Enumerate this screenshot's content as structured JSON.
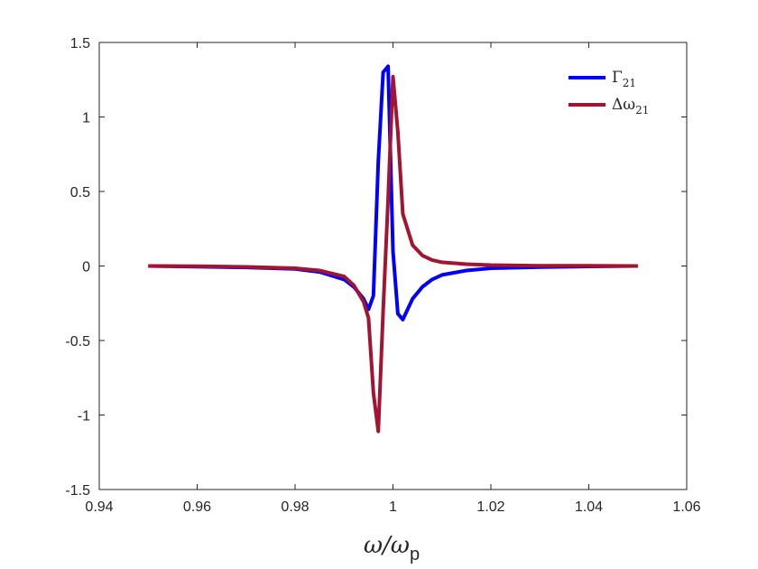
{
  "chart_data": {
    "type": "line",
    "title": "",
    "xlabel": {
      "main": "ω/ω",
      "subscript": "p"
    },
    "ylabel": "",
    "xlim": [
      0.94,
      1.06
    ],
    "ylim": [
      -1.5,
      1.5
    ],
    "x_ticks": [
      "0.94",
      "0.96",
      "0.98",
      "1",
      "1.02",
      "1.04",
      "1.06"
    ],
    "y_ticks": [
      "1.5",
      "1",
      "0.5",
      "0",
      "-0.5",
      "-1",
      "-1.5"
    ],
    "grid": false,
    "legend_position": "top-right",
    "series": [
      {
        "name": "Γ",
        "name_subscript": "21",
        "color": "#0000ff",
        "x": [
          0.95,
          0.96,
          0.97,
          0.98,
          0.985,
          0.99,
          0.992,
          0.994,
          0.995,
          0.996,
          0.997,
          0.998,
          0.999,
          1.0,
          1.001,
          1.002,
          1.004,
          1.006,
          1.008,
          1.01,
          1.015,
          1.02,
          1.03,
          1.04,
          1.05
        ],
        "y": [
          0.0,
          -0.005,
          -0.01,
          -0.02,
          -0.04,
          -0.09,
          -0.14,
          -0.22,
          -0.29,
          -0.2,
          0.7,
          1.3,
          1.34,
          0.1,
          -0.32,
          -0.36,
          -0.22,
          -0.14,
          -0.09,
          -0.06,
          -0.03,
          -0.015,
          -0.007,
          -0.003,
          0.0
        ]
      },
      {
        "name": "Δω",
        "name_subscript": "21",
        "color": "#a2142f",
        "x": [
          0.95,
          0.96,
          0.97,
          0.98,
          0.985,
          0.99,
          0.992,
          0.994,
          0.995,
          0.996,
          0.997,
          0.998,
          0.999,
          1.0,
          1.001,
          1.002,
          1.004,
          1.006,
          1.008,
          1.01,
          1.015,
          1.02,
          1.03,
          1.04,
          1.05
        ],
        "y": [
          0.0,
          -0.002,
          -0.006,
          -0.015,
          -0.03,
          -0.07,
          -0.13,
          -0.24,
          -0.35,
          -0.85,
          -1.11,
          -0.3,
          0.45,
          1.27,
          0.9,
          0.35,
          0.14,
          0.07,
          0.04,
          0.025,
          0.012,
          0.006,
          0.002,
          0.001,
          0.0
        ]
      }
    ]
  }
}
